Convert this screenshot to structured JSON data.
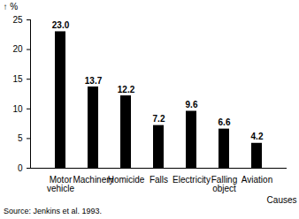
{
  "chart_data": {
    "type": "bar",
    "y_label": "%",
    "x_label": "Causes",
    "caption": "Source: Jenkins et al. 1993.",
    "categories": [
      "Motor vehicle",
      "Machinery",
      "Homicide",
      "Falls",
      "Electricity",
      "Falling object",
      "Aviation"
    ],
    "values": [
      23.0,
      13.7,
      12.2,
      7.2,
      9.6,
      6.6,
      4.2
    ],
    "value_labels": [
      "23.0",
      "13.7",
      "12.2",
      "7.2",
      "9.6",
      "6.6",
      "4.2"
    ],
    "data_labels": true,
    "color": "#000000",
    "ylim": [
      0,
      25
    ],
    "yticks": [
      0,
      5,
      10,
      15,
      20,
      25
    ],
    "grid": false
  }
}
